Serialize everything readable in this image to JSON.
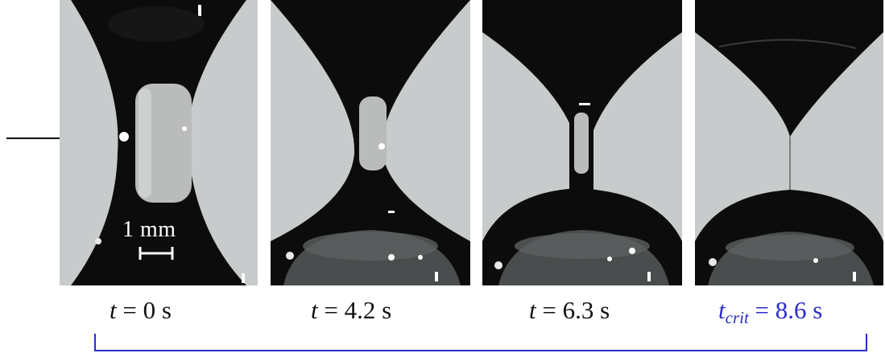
{
  "scale_bar": {
    "label": "1 mm"
  },
  "frames": [
    {
      "caption_var": "t",
      "caption_sub": "",
      "caption_rest": " = 0 s"
    },
    {
      "caption_var": "t",
      "caption_sub": "",
      "caption_rest": " = 4.2 s"
    },
    {
      "caption_var": "t",
      "caption_sub": "",
      "caption_rest": " = 6.3 s"
    },
    {
      "caption_var": "t",
      "caption_sub": "crit",
      "caption_rest": " = 8.6 s"
    }
  ],
  "colors": {
    "background_gray": "#c8cbcb",
    "fluid_dark": "#0c0c0c",
    "highlight": "#ffffff",
    "critical_caption": "#2a2cc9",
    "bracket": "#2a2cc9"
  }
}
